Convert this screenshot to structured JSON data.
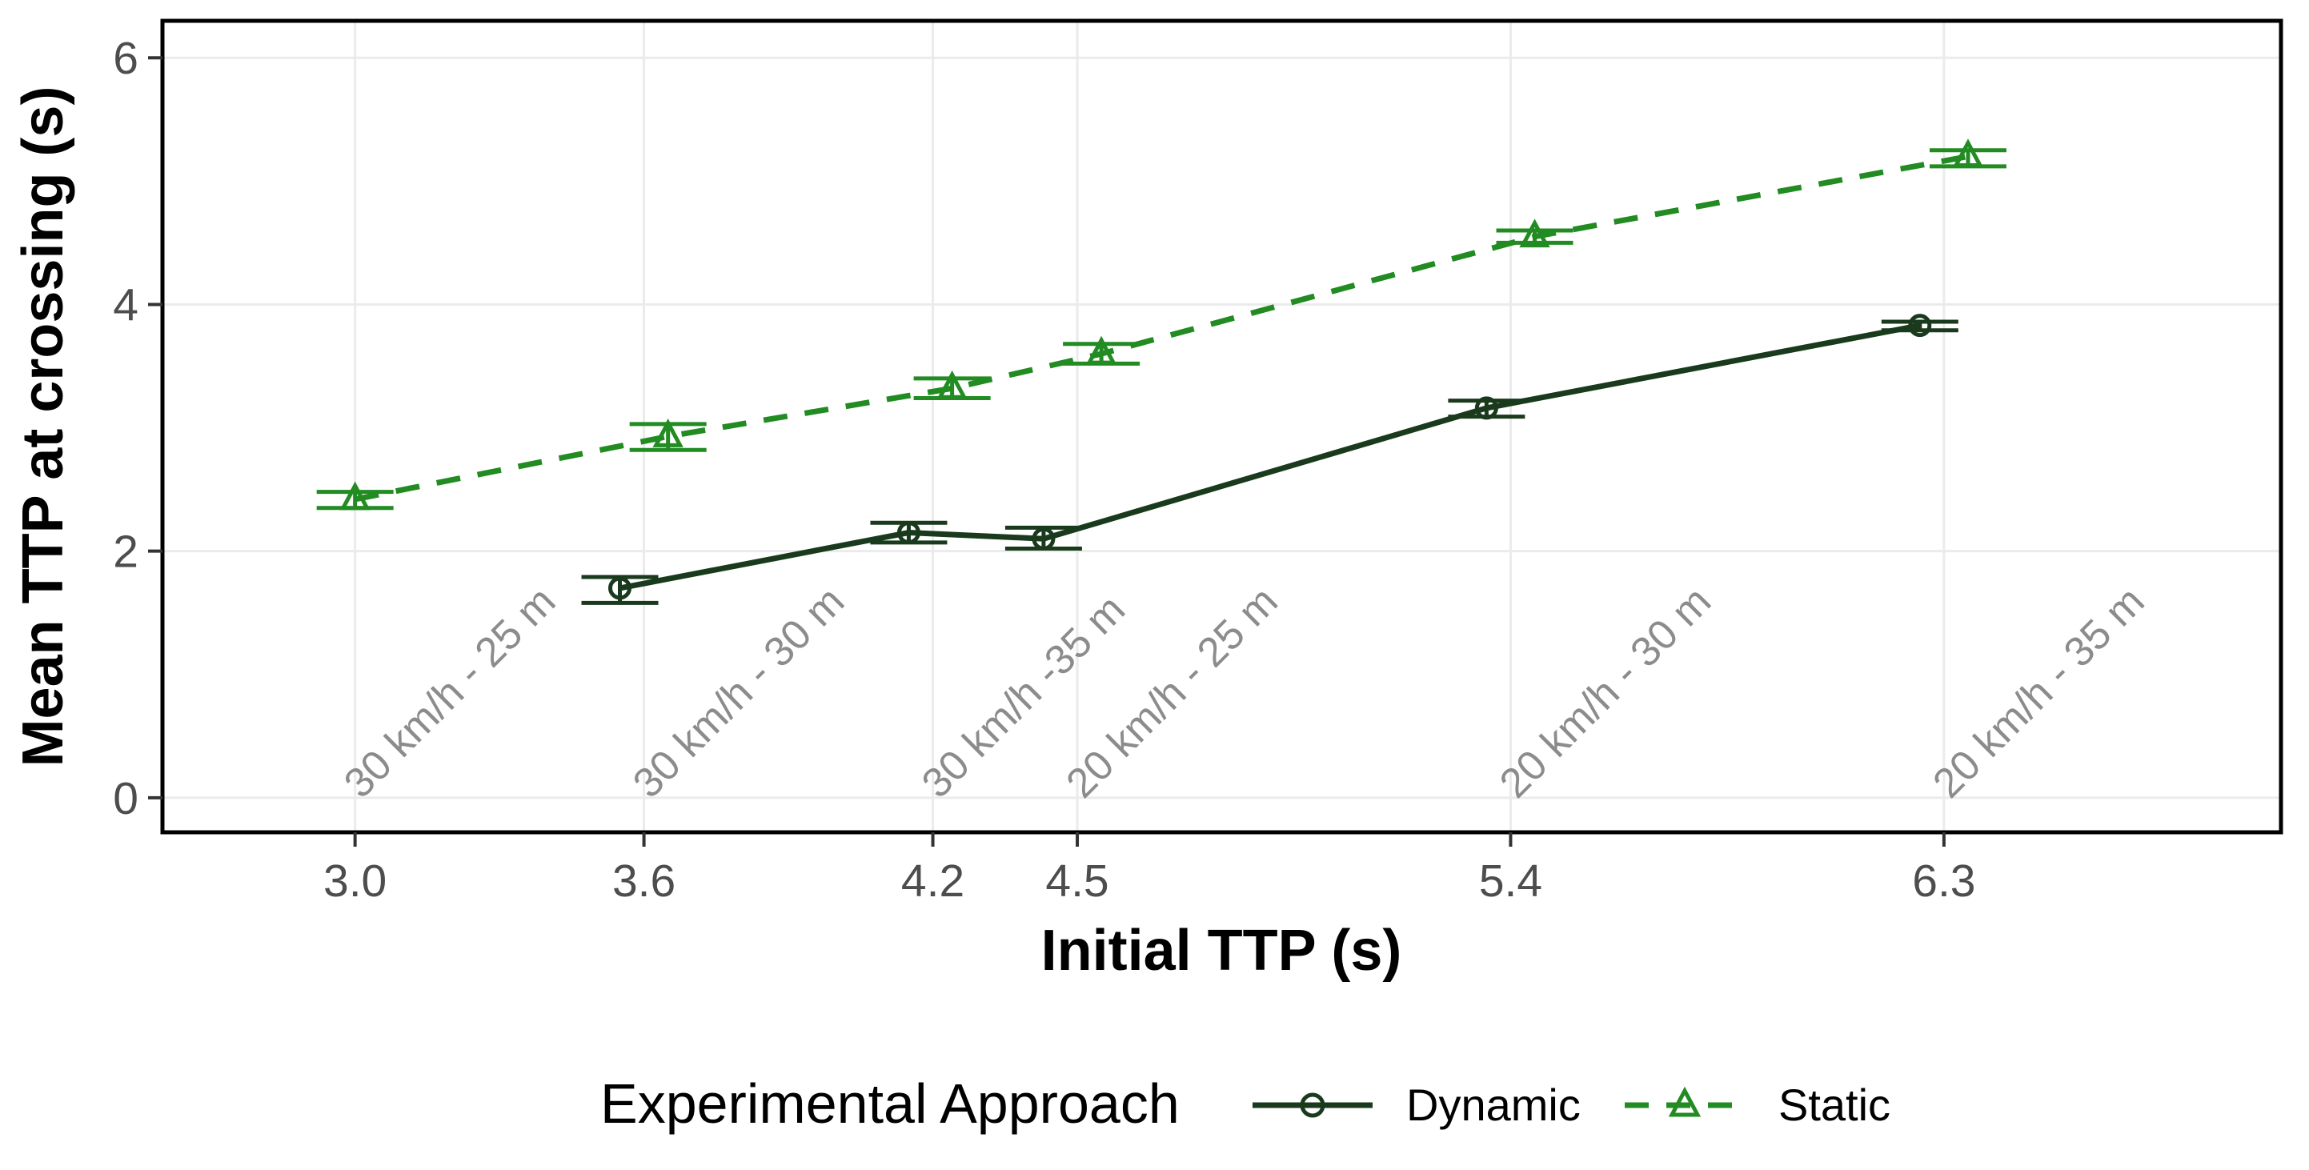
{
  "chart_data": {
    "type": "line",
    "title": "",
    "xlabel": "Initial TTP (s)",
    "ylabel": "Mean TTP at crossing (s)",
    "xlim": [
      2.6,
      7.0
    ],
    "ylim": [
      -0.28,
      6.3
    ],
    "grid": true,
    "grid_color": "#ebebeb",
    "panel_border_color": "#000000",
    "tick_color": "#333333",
    "tick_label_color": "#4d4d4d",
    "annotation_color": "#8c8c8c",
    "x_ticks": [
      3.0,
      3.6,
      4.2,
      4.5,
      5.4,
      6.3
    ],
    "x_tick_labels": [
      "3.0",
      "3.6",
      "4.2",
      "4.5",
      "5.4",
      "6.3"
    ],
    "y_ticks": [
      0,
      2,
      4,
      6
    ],
    "y_tick_labels": [
      "0",
      "2",
      "4",
      "6"
    ],
    "series": [
      {
        "name": "Dynamic",
        "color": "#1a3a1d",
        "linestyle": "solid",
        "marker": "circle-open",
        "x": [
          3.6,
          4.2,
          4.5,
          5.4,
          6.3
        ],
        "x_dodged": [
          3.55,
          4.15,
          4.43,
          5.35,
          6.25
        ],
        "y": [
          1.7,
          2.15,
          2.1,
          3.16,
          3.83
        ],
        "ymin": [
          1.58,
          2.07,
          2.02,
          3.09,
          3.79
        ],
        "ymax": [
          1.79,
          2.23,
          2.19,
          3.22,
          3.86
        ]
      },
      {
        "name": "Static",
        "color": "#228B22",
        "linestyle": "dashed",
        "marker": "triangle-open",
        "x": [
          3.0,
          3.6,
          4.2,
          4.5,
          5.4,
          6.3
        ],
        "x_dodged": [
          3.0,
          3.65,
          4.24,
          4.55,
          5.45,
          6.35
        ],
        "y": [
          2.42,
          2.93,
          3.32,
          3.6,
          4.55,
          5.2
        ],
        "ymin": [
          2.35,
          2.82,
          3.24,
          3.52,
          4.5,
          5.12
        ],
        "ymax": [
          2.48,
          3.03,
          3.4,
          3.68,
          4.6,
          5.25
        ]
      }
    ],
    "annotations": [
      {
        "x": 3.0,
        "label": "30 km/h - 25 m"
      },
      {
        "x": 3.6,
        "label": "30 km/h - 30 m"
      },
      {
        "x": 4.2,
        "label": "30 km/h -35 m"
      },
      {
        "x": 4.5,
        "label": "20 km/h - 25 m"
      },
      {
        "x": 5.4,
        "label": "20 km/h - 30 m"
      },
      {
        "x": 6.3,
        "label": "20 km/h - 35 m"
      }
    ],
    "legend": {
      "title": "Experimental Approach",
      "position": "bottom",
      "items": [
        {
          "label": "Dynamic"
        },
        {
          "label": "Static"
        }
      ]
    }
  }
}
